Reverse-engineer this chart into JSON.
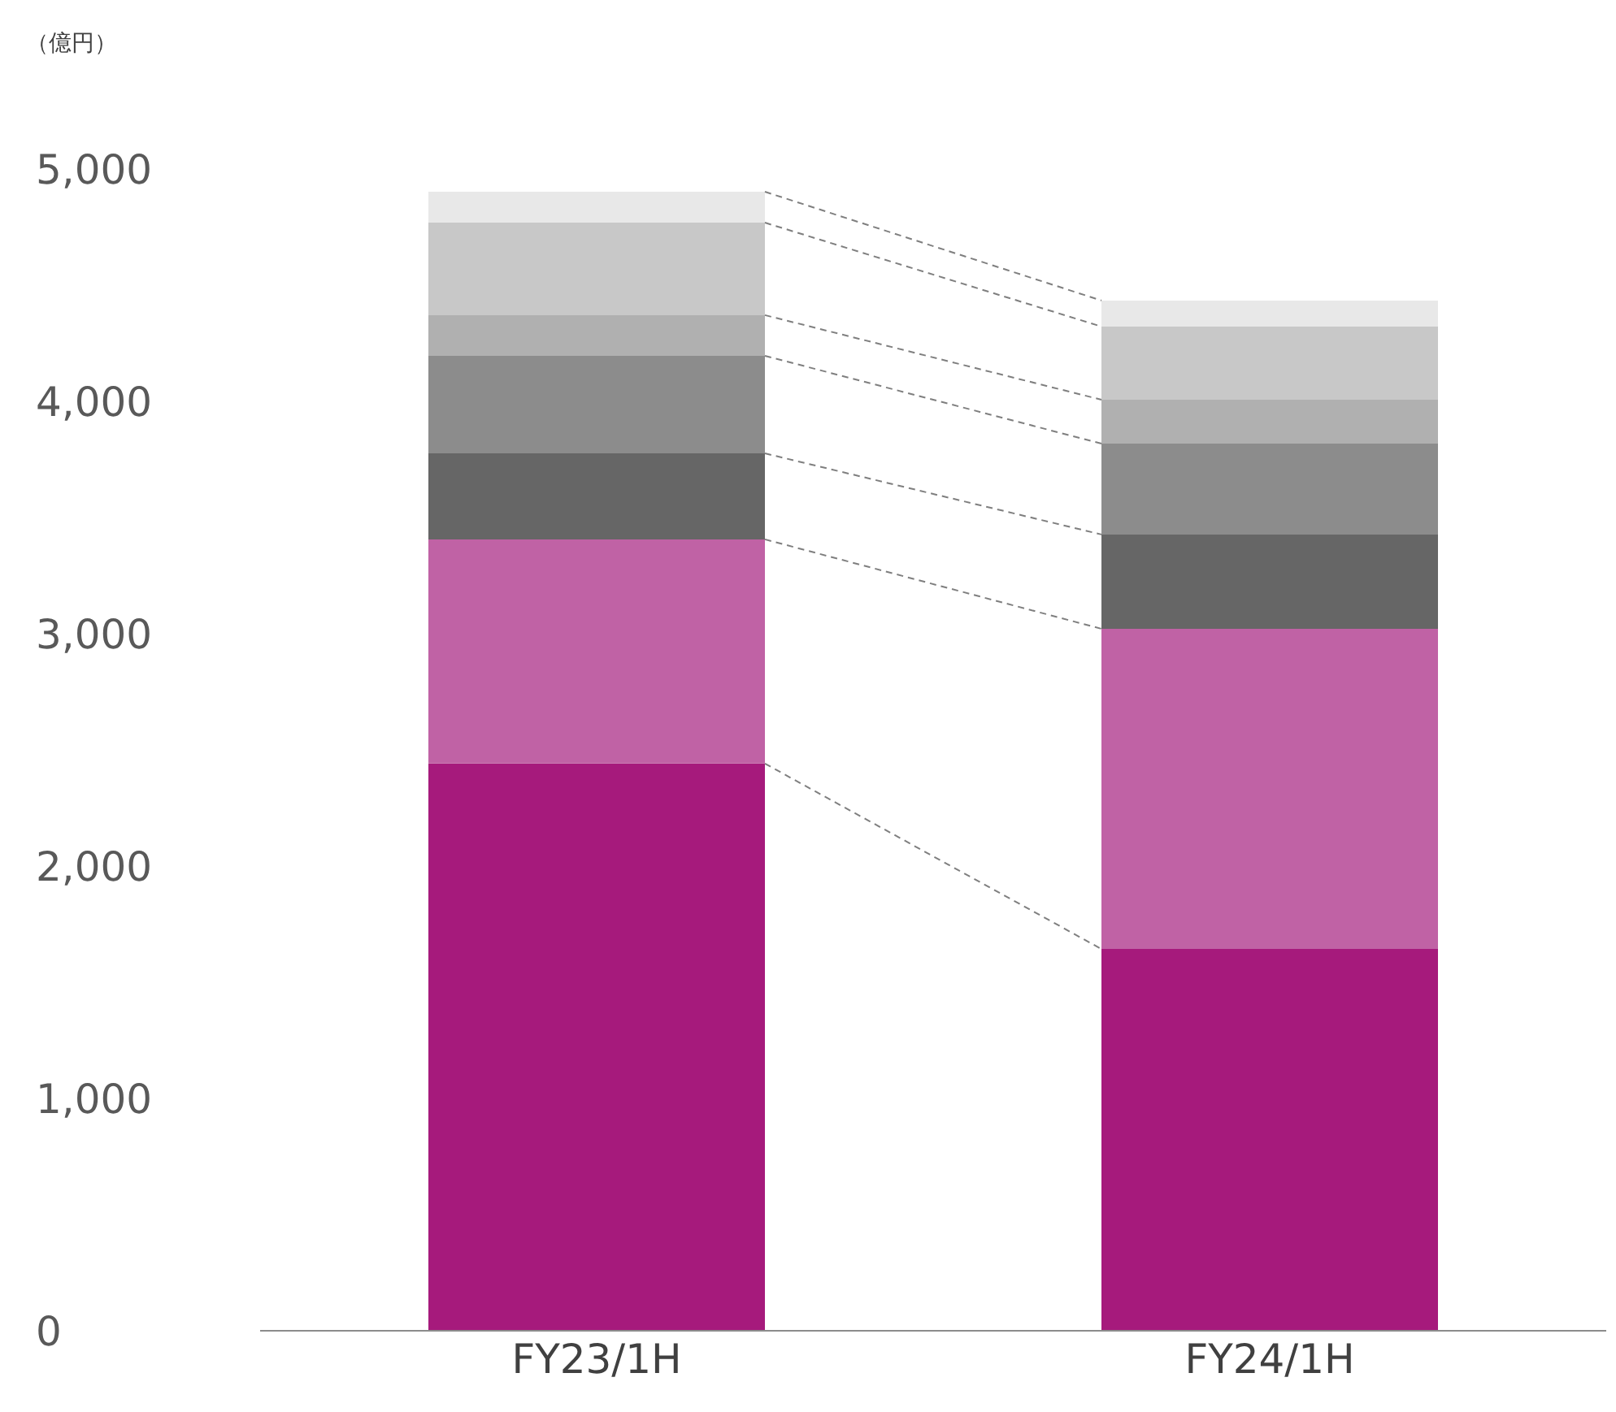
{
  "chart_data": {
    "type": "bar",
    "stacked": true,
    "ylabel": "（億円）",
    "categories": [
      "FY23/1H",
      "FY24/1H"
    ],
    "series": [
      {
        "color": "#a61a7c",
        "values": [
          2441,
          1643
        ]
      },
      {
        "color": "#c062a5",
        "values": [
          965,
          1378
        ]
      },
      {
        "color": "#666666",
        "values": [
          370,
          406
        ]
      },
      {
        "color": "#8c8c8c",
        "values": [
          420,
          391
        ]
      },
      {
        "color": "#b0b0b0",
        "values": [
          175,
          189
        ]
      },
      {
        "color": "#c8c8c8",
        "values": [
          398,
          315
        ]
      },
      {
        "color": "#e8e8e8",
        "values": [
          133,
          112
        ]
      }
    ],
    "ylim": [
      0,
      5000
    ],
    "yticks": [
      0,
      {
        "value": 1000,
        "label": "1,000"
      },
      {
        "value": 2000,
        "label": "2,000"
      },
      {
        "value": 3000,
        "label": "3,000"
      },
      {
        "value": 4000,
        "label": "4,000"
      },
      {
        "value": 5000,
        "label": "5,000"
      }
    ],
    "grid": false
  }
}
